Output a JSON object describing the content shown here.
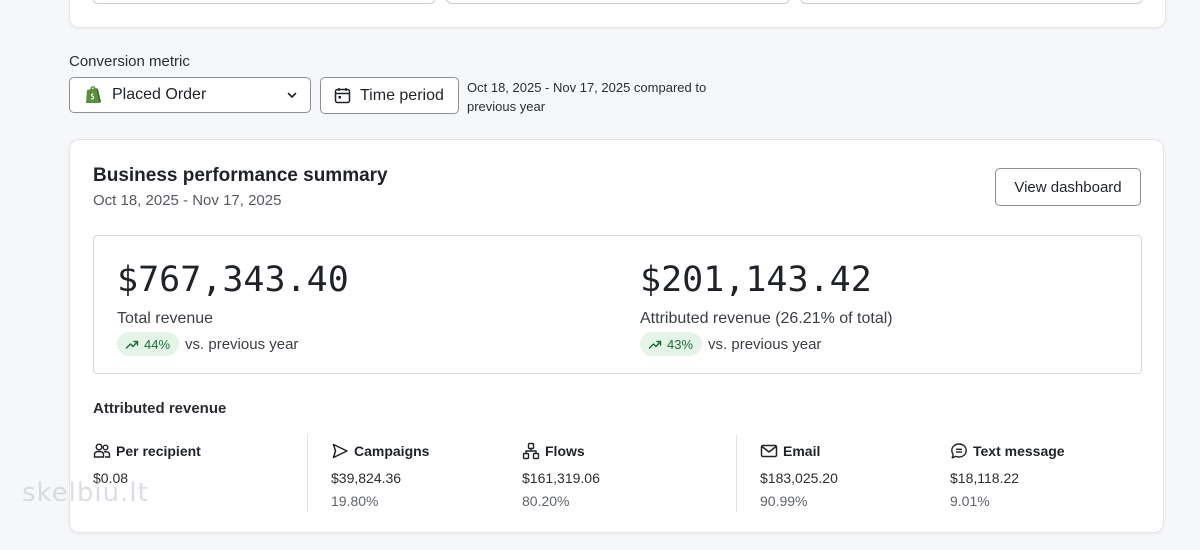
{
  "conversion": {
    "label": "Conversion metric",
    "selected": "Placed Order",
    "time_button": "Time period",
    "period_text": "Oct 18, 2025 - Nov 17, 2025 compared to previous year"
  },
  "summary": {
    "title": "Business performance summary",
    "date_range": "Oct 18, 2025 - Nov 17, 2025",
    "view_button": "View dashboard",
    "total": {
      "amount": "$767,343.40",
      "label": "Total revenue",
      "change": "44%",
      "vs": "vs. previous year"
    },
    "attributed": {
      "amount": "$201,143.42",
      "label": "Attributed revenue (26.21% of total)",
      "change": "43%",
      "vs": "vs. previous year"
    }
  },
  "attributed_revenue": {
    "title": "Attributed revenue",
    "metrics": [
      {
        "icon": "people-icon",
        "name": "Per recipient",
        "value": "$0.08",
        "share": ""
      },
      {
        "icon": "send-icon",
        "name": "Campaigns",
        "value": "$39,824.36",
        "share": "19.80%"
      },
      {
        "icon": "flows-icon",
        "name": "Flows",
        "value": "$161,319.06",
        "share": "80.20%"
      },
      {
        "icon": "mail-icon",
        "name": "Email",
        "value": "$183,025.20",
        "share": "90.99%"
      },
      {
        "icon": "message-icon",
        "name": "Text message",
        "value": "$18,118.22",
        "share": "9.01%"
      }
    ]
  },
  "watermark": "skelbiu.lt",
  "colors": {
    "accent_positive_bg": "#e4f5e8",
    "accent_positive_text": "#1f6f3a",
    "shopify_green": "#5a8e3a"
  }
}
